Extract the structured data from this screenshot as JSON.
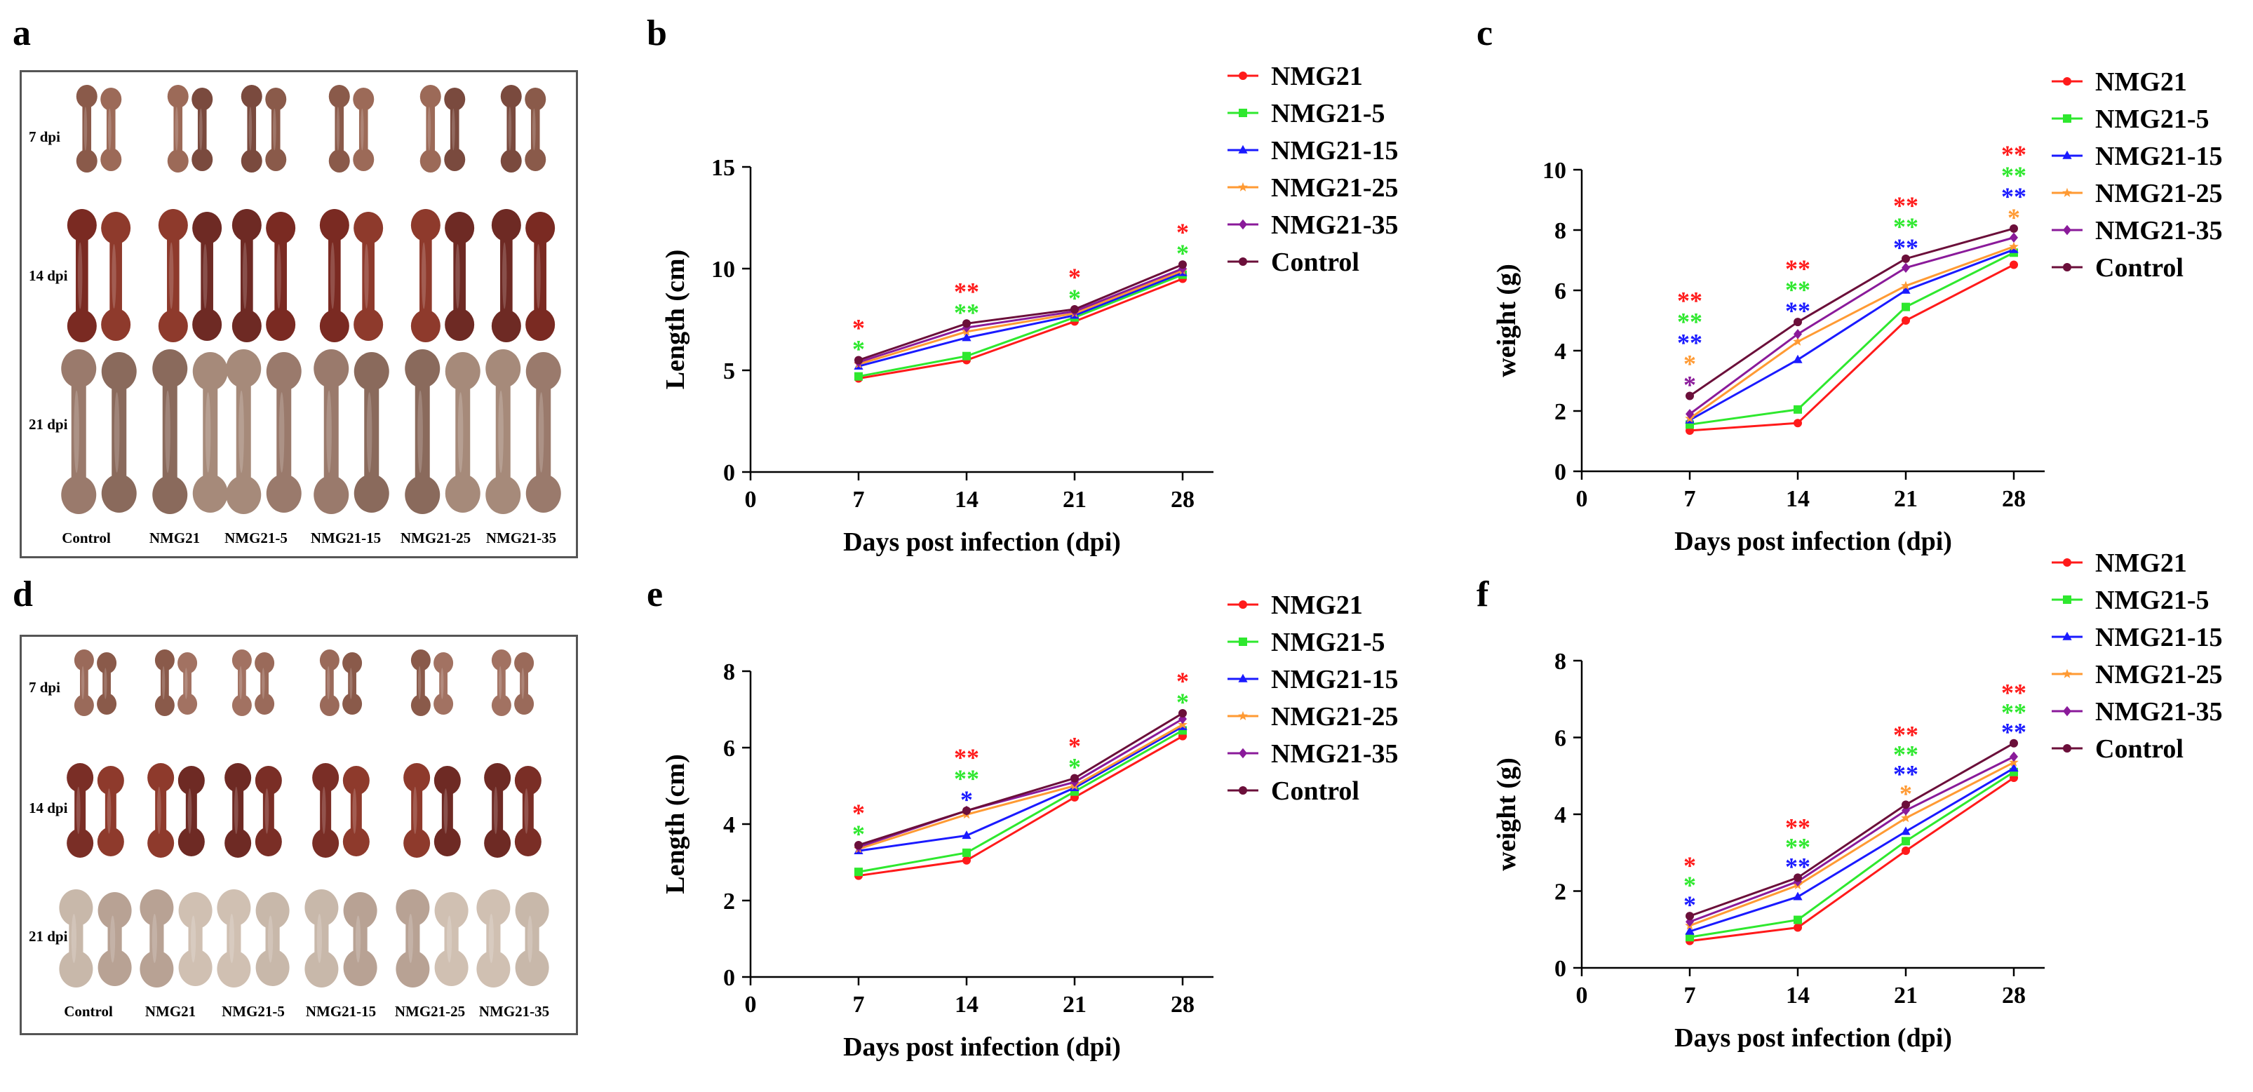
{
  "panels": {
    "a": "a",
    "b": "b",
    "c": "c",
    "d": "d",
    "e": "e",
    "f": "f"
  },
  "photos": [
    {
      "id": "a",
      "rows": [
        "7 dpi",
        "14 dpi",
        "21 dpi"
      ],
      "columns": [
        "Control",
        "NMG21",
        "NMG21-5",
        "NMG21-15",
        "NMG21-25",
        "NMG21-35"
      ]
    },
    {
      "id": "d",
      "rows": [
        "7 dpi",
        "14 dpi",
        "21 dpi"
      ],
      "columns": [
        "Control",
        "NMG21",
        "NMG21-5",
        "NMG21-15",
        "NMG21-25",
        "NMG21-35"
      ]
    }
  ],
  "colors": {
    "NMG21": "#ff1a1a",
    "NMG21-5": "#2ee82e",
    "NMG21-15": "#1a1aff",
    "NMG21-25": "#ff9a33",
    "NMG21-35": "#8a1a9a",
    "Control": "#6b0f3a"
  },
  "chart_data": [
    {
      "id": "b",
      "type": "line",
      "xlabel": "Days post infection (dpi)",
      "ylabel": "Length (cm)",
      "x": [
        7,
        14,
        21,
        28
      ],
      "xticks": [
        0,
        7,
        14,
        21,
        28
      ],
      "xlim": [
        0,
        30
      ],
      "ylim": [
        0,
        15
      ],
      "yticks": [
        0,
        5,
        10,
        15
      ],
      "series": [
        {
          "name": "NMG21",
          "values": [
            4.6,
            5.5,
            7.4,
            9.5
          ]
        },
        {
          "name": "NMG21-5",
          "values": [
            4.7,
            5.7,
            7.6,
            9.7
          ]
        },
        {
          "name": "NMG21-15",
          "values": [
            5.2,
            6.6,
            7.7,
            9.8
          ]
        },
        {
          "name": "NMG21-25",
          "values": [
            5.3,
            6.9,
            7.8,
            9.9
          ]
        },
        {
          "name": "NMG21-35",
          "values": [
            5.4,
            7.1,
            7.9,
            10.0
          ]
        },
        {
          "name": "Control",
          "values": [
            5.5,
            7.3,
            8.0,
            10.2
          ]
        }
      ],
      "annotations": [
        {
          "x": 7,
          "marks": [
            {
              "text": "*",
              "color": "NMG21"
            },
            {
              "text": "*",
              "color": "NMG21-5"
            }
          ]
        },
        {
          "x": 14,
          "marks": [
            {
              "text": "**",
              "color": "NMG21"
            },
            {
              "text": "**",
              "color": "NMG21-5"
            }
          ]
        },
        {
          "x": 21,
          "marks": [
            {
              "text": "*",
              "color": "NMG21"
            },
            {
              "text": "*",
              "color": "NMG21-5"
            }
          ]
        },
        {
          "x": 28,
          "marks": [
            {
              "text": "*",
              "color": "NMG21"
            },
            {
              "text": "*",
              "color": "NMG21-5"
            }
          ]
        }
      ]
    },
    {
      "id": "c",
      "type": "line",
      "xlabel": "Days post infection (dpi)",
      "ylabel": "weight (g)",
      "x": [
        7,
        14,
        21,
        28
      ],
      "xticks": [
        0,
        7,
        14,
        21,
        28
      ],
      "xlim": [
        0,
        30
      ],
      "ylim": [
        0,
        10
      ],
      "yticks": [
        0,
        2,
        4,
        6,
        8,
        10
      ],
      "series": [
        {
          "name": "NMG21",
          "values": [
            1.35,
            1.6,
            5.0,
            6.85
          ]
        },
        {
          "name": "NMG21-5",
          "values": [
            1.55,
            2.05,
            5.45,
            7.25
          ]
        },
        {
          "name": "NMG21-15",
          "values": [
            1.7,
            3.7,
            6.0,
            7.35
          ]
        },
        {
          "name": "NMG21-25",
          "values": [
            1.75,
            4.3,
            6.15,
            7.45
          ]
        },
        {
          "name": "NMG21-35",
          "values": [
            1.9,
            4.55,
            6.75,
            7.75
          ]
        },
        {
          "name": "Control",
          "values": [
            2.5,
            4.95,
            7.05,
            8.05
          ]
        }
      ],
      "annotations": [
        {
          "x": 7,
          "marks": [
            {
              "text": "**",
              "color": "NMG21"
            },
            {
              "text": "**",
              "color": "NMG21-5"
            },
            {
              "text": "**",
              "color": "NMG21-15"
            },
            {
              "text": "*",
              "color": "NMG21-25"
            },
            {
              "text": "*",
              "color": "NMG21-35"
            }
          ]
        },
        {
          "x": 14,
          "marks": [
            {
              "text": "**",
              "color": "NMG21"
            },
            {
              "text": "**",
              "color": "NMG21-5"
            },
            {
              "text": "**",
              "color": "NMG21-15"
            }
          ]
        },
        {
          "x": 21,
          "marks": [
            {
              "text": "**",
              "color": "NMG21"
            },
            {
              "text": "**",
              "color": "NMG21-5"
            },
            {
              "text": "**",
              "color": "NMG21-15"
            }
          ]
        },
        {
          "x": 28,
          "marks": [
            {
              "text": "**",
              "color": "NMG21"
            },
            {
              "text": "**",
              "color": "NMG21-5"
            },
            {
              "text": "**",
              "color": "NMG21-15"
            },
            {
              "text": "*",
              "color": "NMG21-25"
            }
          ]
        }
      ]
    },
    {
      "id": "e",
      "type": "line",
      "xlabel": "Days post infection (dpi)",
      "ylabel": "Length (cm)",
      "x": [
        7,
        14,
        21,
        28
      ],
      "xticks": [
        0,
        7,
        14,
        21,
        28
      ],
      "xlim": [
        0,
        30
      ],
      "ylim": [
        0,
        8
      ],
      "yticks": [
        0,
        2,
        4,
        6,
        8
      ],
      "series": [
        {
          "name": "NMG21",
          "values": [
            2.65,
            3.05,
            4.7,
            6.3
          ]
        },
        {
          "name": "NMG21-5",
          "values": [
            2.75,
            3.25,
            4.85,
            6.45
          ]
        },
        {
          "name": "NMG21-15",
          "values": [
            3.3,
            3.7,
            4.95,
            6.55
          ]
        },
        {
          "name": "NMG21-25",
          "values": [
            3.35,
            4.25,
            5.0,
            6.6
          ]
        },
        {
          "name": "NMG21-35",
          "values": [
            3.4,
            4.35,
            5.1,
            6.75
          ]
        },
        {
          "name": "Control",
          "values": [
            3.45,
            4.35,
            5.2,
            6.9
          ]
        }
      ],
      "annotations": [
        {
          "x": 7,
          "marks": [
            {
              "text": "*",
              "color": "NMG21"
            },
            {
              "text": "*",
              "color": "NMG21-5"
            }
          ]
        },
        {
          "x": 14,
          "marks": [
            {
              "text": "**",
              "color": "NMG21"
            },
            {
              "text": "**",
              "color": "NMG21-5"
            },
            {
              "text": "*",
              "color": "NMG21-15"
            }
          ]
        },
        {
          "x": 21,
          "marks": [
            {
              "text": "*",
              "color": "NMG21"
            },
            {
              "text": "*",
              "color": "NMG21-5"
            }
          ]
        },
        {
          "x": 28,
          "marks": [
            {
              "text": "*",
              "color": "NMG21"
            },
            {
              "text": "*",
              "color": "NMG21-5"
            }
          ]
        }
      ]
    },
    {
      "id": "f",
      "type": "line",
      "xlabel": "Days post infection (dpi)",
      "ylabel": "weight (g)",
      "x": [
        7,
        14,
        21,
        28
      ],
      "xticks": [
        0,
        7,
        14,
        21,
        28
      ],
      "xlim": [
        0,
        30
      ],
      "ylim": [
        0,
        8
      ],
      "yticks": [
        0,
        2,
        4,
        6,
        8
      ],
      "series": [
        {
          "name": "NMG21",
          "values": [
            0.7,
            1.05,
            3.05,
            4.95
          ]
        },
        {
          "name": "NMG21-5",
          "values": [
            0.8,
            1.25,
            3.3,
            5.1
          ]
        },
        {
          "name": "NMG21-15",
          "values": [
            0.95,
            1.85,
            3.55,
            5.2
          ]
        },
        {
          "name": "NMG21-25",
          "values": [
            1.1,
            2.15,
            3.9,
            5.35
          ]
        },
        {
          "name": "NMG21-35",
          "values": [
            1.2,
            2.25,
            4.1,
            5.5
          ]
        },
        {
          "name": "Control",
          "values": [
            1.35,
            2.35,
            4.25,
            5.85
          ]
        }
      ],
      "annotations": [
        {
          "x": 7,
          "marks": [
            {
              "text": "*",
              "color": "NMG21"
            },
            {
              "text": "*",
              "color": "NMG21-5"
            },
            {
              "text": "*",
              "color": "NMG21-15"
            }
          ]
        },
        {
          "x": 14,
          "marks": [
            {
              "text": "**",
              "color": "NMG21"
            },
            {
              "text": "**",
              "color": "NMG21-5"
            },
            {
              "text": "**",
              "color": "NMG21-15"
            }
          ]
        },
        {
          "x": 21,
          "marks": [
            {
              "text": "**",
              "color": "NMG21"
            },
            {
              "text": "**",
              "color": "NMG21-5"
            },
            {
              "text": "**",
              "color": "NMG21-15"
            },
            {
              "text": "*",
              "color": "NMG21-25"
            }
          ]
        },
        {
          "x": 28,
          "marks": [
            {
              "text": "**",
              "color": "NMG21"
            },
            {
              "text": "**",
              "color": "NMG21-5"
            },
            {
              "text": "**",
              "color": "NMG21-15"
            }
          ]
        }
      ]
    }
  ]
}
